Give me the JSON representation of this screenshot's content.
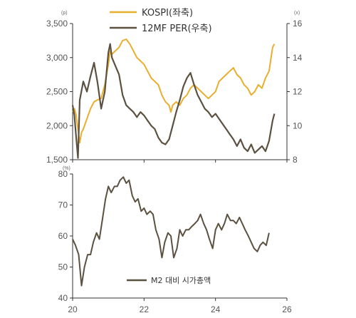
{
  "chart_data": [
    {
      "type": "line",
      "panel": "top",
      "x_ticks": [
        "20",
        "22",
        "24",
        "26"
      ],
      "y_left": {
        "unit": "(p)",
        "ticks": [
          "1,500",
          "2,000",
          "2,500",
          "3,000",
          "3,500"
        ],
        "range": [
          1500,
          3500
        ]
      },
      "y_right": {
        "unit": "(x)",
        "ticks": [
          "8",
          "10",
          "12",
          "14",
          "16"
        ],
        "range": [
          8,
          16
        ]
      },
      "legend_placement": "top-center",
      "series": [
        {
          "name": "KOSPI(좌축)",
          "axis": "left",
          "color": "#E8AE2E",
          "x": [
            2020.0,
            2020.05,
            2020.1,
            2020.15,
            2020.2,
            2020.25,
            2020.3,
            2020.4,
            2020.5,
            2020.6,
            2020.7,
            2020.8,
            2020.9,
            2021.0,
            2021.05,
            2021.1,
            2021.2,
            2021.3,
            2021.4,
            2021.5,
            2021.6,
            2021.7,
            2021.8,
            2021.9,
            2022.0,
            2022.1,
            2022.2,
            2022.3,
            2022.4,
            2022.5,
            2022.6,
            2022.7,
            2022.75,
            2022.8,
            2022.9,
            2023.0,
            2023.1,
            2023.2,
            2023.3,
            2023.4,
            2023.5,
            2023.6,
            2023.7,
            2023.8,
            2023.9,
            2024.0,
            2024.1,
            2024.2,
            2024.3,
            2024.4,
            2024.5,
            2024.6,
            2024.7,
            2024.8,
            2024.9,
            2025.0,
            2025.1,
            2025.2,
            2025.3,
            2025.4,
            2025.5,
            2025.6,
            2025.65
          ],
          "values": [
            2200,
            2250,
            2150,
            1950,
            1750,
            1900,
            1950,
            2100,
            2250,
            2350,
            2380,
            2400,
            2600,
            2900,
            3100,
            3050,
            3100,
            3150,
            3250,
            3270,
            3200,
            3100,
            3000,
            2950,
            2900,
            2800,
            2700,
            2650,
            2600,
            2450,
            2350,
            2300,
            2200,
            2300,
            2350,
            2300,
            2400,
            2450,
            2550,
            2600,
            2550,
            2500,
            2450,
            2400,
            2450,
            2500,
            2650,
            2700,
            2750,
            2800,
            2850,
            2750,
            2700,
            2600,
            2550,
            2450,
            2500,
            2600,
            2550,
            2700,
            2800,
            3150,
            3200
          ]
        },
        {
          "name": "12MF PER(우축)",
          "axis": "right",
          "color": "#5C5140",
          "x": [
            2020.0,
            2020.05,
            2020.1,
            2020.15,
            2020.2,
            2020.3,
            2020.4,
            2020.5,
            2020.6,
            2020.7,
            2020.8,
            2020.9,
            2021.0,
            2021.05,
            2021.1,
            2021.2,
            2021.3,
            2021.4,
            2021.5,
            2021.6,
            2021.7,
            2021.8,
            2021.9,
            2022.0,
            2022.1,
            2022.2,
            2022.3,
            2022.4,
            2022.5,
            2022.6,
            2022.7,
            2022.75,
            2022.8,
            2022.9,
            2023.0,
            2023.1,
            2023.2,
            2023.3,
            2023.4,
            2023.5,
            2023.6,
            2023.7,
            2023.8,
            2023.9,
            2024.0,
            2024.1,
            2024.2,
            2024.3,
            2024.4,
            2024.5,
            2024.6,
            2024.7,
            2024.8,
            2024.9,
            2025.0,
            2025.1,
            2025.2,
            2025.3,
            2025.4,
            2025.5,
            2025.6,
            2025.65
          ],
          "values": [
            11.2,
            10.6,
            9.3,
            8.1,
            11.5,
            12.6,
            12.0,
            12.9,
            13.7,
            12.5,
            11.0,
            12.0,
            14.3,
            14.8,
            14.0,
            13.5,
            13.0,
            11.8,
            11.2,
            11.0,
            10.8,
            10.5,
            10.8,
            10.6,
            10.3,
            10.0,
            9.8,
            9.3,
            9.0,
            8.9,
            9.2,
            9.6,
            10.0,
            10.8,
            11.5,
            12.3,
            12.8,
            13.1,
            12.4,
            11.8,
            11.4,
            11.0,
            10.8,
            10.5,
            10.7,
            10.4,
            10.1,
            9.8,
            9.5,
            9.2,
            8.8,
            9.2,
            8.7,
            8.5,
            8.9,
            8.4,
            8.6,
            8.8,
            8.5,
            9.1,
            10.3,
            10.7
          ]
        }
      ]
    },
    {
      "type": "line",
      "panel": "bottom",
      "x_ticks": [
        "20",
        "22",
        "24",
        "26"
      ],
      "y_left": {
        "unit": "(%)",
        "ticks": [
          "40",
          "50",
          "60",
          "70",
          "80"
        ],
        "range": [
          40,
          80
        ]
      },
      "legend_placement": "bottom-center",
      "series": [
        {
          "name": "M2 대비 시가총액",
          "axis": "left",
          "color": "#5C5140",
          "x": [
            2020.0,
            2020.08,
            2020.17,
            2020.25,
            2020.33,
            2020.42,
            2020.5,
            2020.58,
            2020.67,
            2020.75,
            2020.83,
            2020.92,
            2021.0,
            2021.08,
            2021.17,
            2021.25,
            2021.33,
            2021.42,
            2021.5,
            2021.58,
            2021.67,
            2021.75,
            2021.83,
            2021.92,
            2022.0,
            2022.08,
            2022.17,
            2022.25,
            2022.33,
            2022.42,
            2022.5,
            2022.58,
            2022.67,
            2022.75,
            2022.83,
            2022.92,
            2023.0,
            2023.08,
            2023.17,
            2023.25,
            2023.33,
            2023.42,
            2023.5,
            2023.58,
            2023.67,
            2023.75,
            2023.83,
            2023.92,
            2024.0,
            2024.08,
            2024.17,
            2024.25,
            2024.33,
            2024.42,
            2024.5,
            2024.58,
            2024.67,
            2024.75,
            2024.83,
            2024.92,
            2025.0,
            2025.08,
            2025.17,
            2025.25,
            2025.33,
            2025.42,
            2025.5
          ],
          "values": [
            59,
            57,
            54,
            44,
            50,
            54,
            54,
            58,
            61,
            59,
            65,
            72,
            76,
            74,
            76,
            76,
            78,
            79,
            77,
            78,
            73,
            71,
            72,
            68,
            69,
            67,
            68,
            67,
            62,
            59,
            53,
            58,
            61,
            60,
            53,
            56,
            62,
            60,
            62,
            62,
            63,
            64,
            65,
            67,
            64,
            62,
            59,
            56,
            62,
            64,
            62,
            64,
            67,
            65,
            65,
            64,
            66,
            64,
            62,
            60,
            58,
            56,
            55,
            57,
            58,
            57,
            61
          ]
        }
      ]
    }
  ]
}
